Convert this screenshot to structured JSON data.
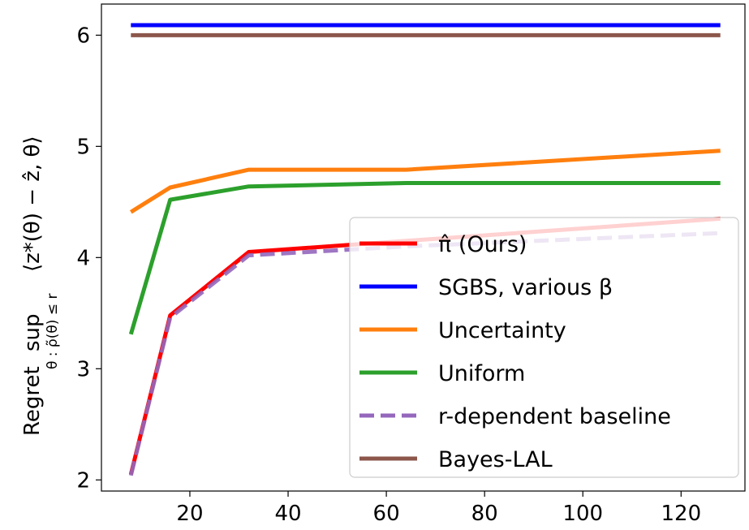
{
  "chart_data": {
    "type": "line",
    "title": "",
    "xlabel": "",
    "ylabel": {
      "prefix": "Regret",
      "operator": "sup",
      "subscript": "θ : ρ̃(θ) ≤ r",
      "expression": "⟨z*(θ) − ẑ, θ⟩"
    },
    "xlim": [
      2,
      133
    ],
    "ylim": [
      1.9,
      6.28
    ],
    "xticks": [
      20,
      40,
      60,
      80,
      100,
      120
    ],
    "yticks": [
      2,
      3,
      4,
      5,
      6
    ],
    "grid": false,
    "legend_position": "lower-right",
    "x": [
      8,
      16,
      32,
      64,
      128
    ],
    "series": [
      {
        "name": "π̂ (Ours)",
        "color": "#ff0000",
        "dashed": false,
        "values": [
          2.05,
          3.48,
          4.05,
          4.15,
          4.35
        ]
      },
      {
        "name": "SGBS, various β",
        "color": "#0000ff",
        "dashed": false,
        "values": [
          6.09,
          6.09,
          6.09,
          6.09,
          6.09
        ]
      },
      {
        "name": "Uncertainty",
        "color": "#ff7f0e",
        "dashed": false,
        "values": [
          4.41,
          4.63,
          4.79,
          4.79,
          4.96
        ]
      },
      {
        "name": "Uniform",
        "color": "#2ca02c",
        "dashed": false,
        "values": [
          3.31,
          4.52,
          4.64,
          4.67,
          4.67
        ]
      },
      {
        "name": "r-dependent baseline",
        "color": "#9467bd",
        "dashed": true,
        "values": [
          2.04,
          3.46,
          4.02,
          4.1,
          4.22
        ]
      },
      {
        "name": "Bayes-LAL",
        "color": "#8c564b",
        "dashed": false,
        "values": [
          6.0,
          6.0,
          6.0,
          6.0,
          6.0
        ]
      }
    ]
  }
}
